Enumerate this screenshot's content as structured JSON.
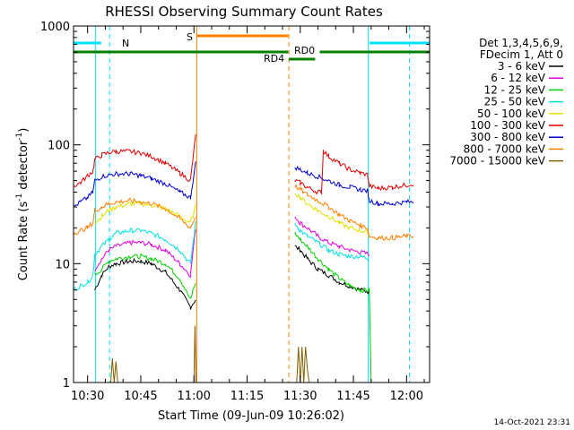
{
  "chart_data": {
    "type": "line",
    "title": "RHESSI Observing Summary Count Rates",
    "xlabel": "Start Time (09-Jun-09 10:26:02)",
    "ylabel_main": "Count Rate (s",
    "ylabel_sup1": "-1",
    "ylabel_mid": " detector",
    "ylabel_sup2": "-1",
    "ylabel_end": ")",
    "yscale": "log",
    "ylim": [
      1,
      1000
    ],
    "xlim_minutes": [
      26.03,
      126.5
    ],
    "xticks": [
      {
        "label": "10:30",
        "min": 30
      },
      {
        "label": "10:45",
        "min": 45
      },
      {
        "label": "11:00",
        "min": 60
      },
      {
        "label": "11:15",
        "min": 75
      },
      {
        "label": "11:30",
        "min": 90
      },
      {
        "label": "11:45",
        "min": 105
      },
      {
        "label": "12:00",
        "min": 120
      }
    ],
    "yticks": [
      {
        "label": "1",
        "v": 1
      },
      {
        "label": "10",
        "v": 10
      },
      {
        "label": "100",
        "v": 100
      },
      {
        "label": "1000",
        "v": 1000
      }
    ],
    "legend_header": [
      "Det 1,3,4,5,6,9,",
      "FDecim 1, Att 0"
    ],
    "series": [
      {
        "name": "3 - 6 keV",
        "color": "#000000",
        "points": [
          [
            26,
            null
          ],
          [
            31.5,
            null
          ],
          [
            32,
            6
          ],
          [
            34,
            8
          ],
          [
            36,
            9.5
          ],
          [
            38,
            10
          ],
          [
            42,
            10.5
          ],
          [
            45,
            10.5
          ],
          [
            48,
            10
          ],
          [
            52,
            8.5
          ],
          [
            56,
            6
          ],
          [
            59,
            4.3
          ],
          [
            60.5,
            5
          ],
          [
            61,
            null
          ],
          [
            88,
            null
          ],
          [
            88.5,
            14
          ],
          [
            90,
            13
          ],
          [
            92,
            11
          ],
          [
            95,
            9
          ],
          [
            98,
            8
          ],
          [
            101,
            7
          ],
          [
            104,
            6.5
          ],
          [
            107,
            6
          ],
          [
            109.5,
            5.8
          ],
          [
            110,
            null
          ]
        ]
      },
      {
        "name": "6 - 12 keV",
        "color": "#e000e0",
        "points": [
          [
            26,
            null
          ],
          [
            31.5,
            null
          ],
          [
            32,
            9
          ],
          [
            34,
            11
          ],
          [
            36,
            13
          ],
          [
            38,
            14
          ],
          [
            42,
            15
          ],
          [
            45,
            15
          ],
          [
            48,
            14.5
          ],
          [
            52,
            13
          ],
          [
            56,
            10
          ],
          [
            59,
            8
          ],
          [
            60.5,
            20
          ],
          [
            61,
            null
          ],
          [
            88,
            null
          ],
          [
            88.5,
            25
          ],
          [
            90,
            22
          ],
          [
            92,
            20
          ],
          [
            95,
            17
          ],
          [
            98,
            15
          ],
          [
            101,
            14
          ],
          [
            104,
            13
          ],
          [
            107,
            12.5
          ],
          [
            109.5,
            12
          ],
          [
            110,
            null
          ]
        ]
      },
      {
        "name": "12 - 25 keV",
        "color": "#00d000",
        "points": [
          [
            26,
            null
          ],
          [
            31.5,
            null
          ],
          [
            32,
            8
          ],
          [
            34,
            9
          ],
          [
            36,
            10.5
          ],
          [
            38,
            11
          ],
          [
            42,
            11.5
          ],
          [
            45,
            11.5
          ],
          [
            48,
            11
          ],
          [
            52,
            10
          ],
          [
            56,
            7.5
          ],
          [
            59,
            5
          ],
          [
            60.5,
            7
          ],
          [
            61,
            null
          ],
          [
            88,
            null
          ],
          [
            88.5,
            18
          ],
          [
            90,
            16
          ],
          [
            92,
            14
          ],
          [
            95,
            11
          ],
          [
            98,
            9
          ],
          [
            101,
            7.5
          ],
          [
            104,
            6.5
          ],
          [
            107,
            6
          ],
          [
            109.5,
            6
          ],
          [
            110,
            1
          ]
        ]
      },
      {
        "name": "25 - 50 keV",
        "color": "#00e0e0",
        "points": [
          [
            26,
            6
          ],
          [
            28,
            6.5
          ],
          [
            30,
            7
          ],
          [
            31.5,
            8
          ],
          [
            32,
            12
          ],
          [
            34,
            14
          ],
          [
            36,
            16
          ],
          [
            38,
            18
          ],
          [
            42,
            19
          ],
          [
            45,
            19
          ],
          [
            48,
            18
          ],
          [
            52,
            16
          ],
          [
            56,
            13
          ],
          [
            59,
            10
          ],
          [
            60.5,
            22
          ],
          [
            61,
            null
          ],
          [
            88,
            null
          ],
          [
            88.5,
            22
          ],
          [
            90,
            19
          ],
          [
            92,
            17
          ],
          [
            95,
            15
          ],
          [
            98,
            13
          ],
          [
            101,
            12
          ],
          [
            104,
            11.5
          ],
          [
            107,
            11.5
          ],
          [
            109.5,
            11
          ],
          [
            110,
            null
          ]
        ]
      },
      {
        "name": "50 - 100 keV",
        "color": "#e0e000",
        "points": [
          [
            26,
            null
          ],
          [
            31.5,
            null
          ],
          [
            32,
            22
          ],
          [
            34,
            25
          ],
          [
            36,
            28
          ],
          [
            38,
            30
          ],
          [
            42,
            32
          ],
          [
            45,
            32
          ],
          [
            48,
            31
          ],
          [
            52,
            29
          ],
          [
            56,
            25
          ],
          [
            59,
            22
          ],
          [
            60.5,
            30
          ],
          [
            61,
            null
          ],
          [
            88,
            null
          ],
          [
            88.5,
            40
          ],
          [
            90,
            36
          ],
          [
            92,
            32
          ],
          [
            95,
            28
          ],
          [
            98,
            25
          ],
          [
            101,
            22
          ],
          [
            104,
            20
          ],
          [
            107,
            19
          ],
          [
            109.5,
            18
          ],
          [
            110,
            null
          ]
        ]
      },
      {
        "name": "100 - 300 keV",
        "color": "#e00000",
        "points": [
          [
            26,
            45
          ],
          [
            28,
            48
          ],
          [
            30,
            55
          ],
          [
            31.5,
            60
          ],
          [
            32,
            75
          ],
          [
            34,
            82
          ],
          [
            36,
            86
          ],
          [
            38,
            88
          ],
          [
            42,
            88
          ],
          [
            45,
            85
          ],
          [
            48,
            80
          ],
          [
            52,
            70
          ],
          [
            56,
            58
          ],
          [
            59,
            50
          ],
          [
            60.5,
            120
          ],
          [
            61,
            null
          ],
          [
            88,
            null
          ],
          [
            88.5,
            50
          ],
          [
            90,
            48
          ],
          [
            92,
            44
          ],
          [
            95,
            40
          ],
          [
            96,
            40
          ],
          [
            96.5,
            90
          ],
          [
            98,
            80
          ],
          [
            101,
            70
          ],
          [
            104,
            62
          ],
          [
            107,
            58
          ],
          [
            109,
            56
          ],
          [
            109.5,
            45
          ],
          [
            112,
            43
          ],
          [
            116,
            44
          ],
          [
            120,
            46
          ],
          [
            122,
            47
          ]
        ]
      },
      {
        "name": "300 - 800 keV",
        "color": "#0000d0",
        "points": [
          [
            26,
            30
          ],
          [
            28,
            33
          ],
          [
            30,
            36
          ],
          [
            31.5,
            40
          ],
          [
            32,
            50
          ],
          [
            34,
            54
          ],
          [
            36,
            56
          ],
          [
            38,
            57
          ],
          [
            42,
            57
          ],
          [
            45,
            55
          ],
          [
            48,
            52
          ],
          [
            52,
            47
          ],
          [
            56,
            40
          ],
          [
            59,
            36
          ],
          [
            60.5,
            70
          ],
          [
            61,
            null
          ],
          [
            88,
            null
          ],
          [
            88.5,
            65
          ],
          [
            90,
            62
          ],
          [
            92,
            58
          ],
          [
            95,
            54
          ],
          [
            98,
            50
          ],
          [
            101,
            46
          ],
          [
            104,
            44
          ],
          [
            107,
            42
          ],
          [
            109,
            41
          ],
          [
            109.5,
            34
          ],
          [
            112,
            32
          ],
          [
            116,
            32
          ],
          [
            120,
            33
          ],
          [
            122,
            33
          ]
        ]
      },
      {
        "name": "800 - 7000 keV",
        "color": "#ff8000",
        "points": [
          [
            26,
            18
          ],
          [
            28,
            19
          ],
          [
            30,
            20
          ],
          [
            31.5,
            22
          ],
          [
            32,
            28
          ],
          [
            34,
            30
          ],
          [
            36,
            32
          ],
          [
            38,
            33
          ],
          [
            42,
            34
          ],
          [
            45,
            33
          ],
          [
            48,
            32
          ],
          [
            52,
            29
          ],
          [
            56,
            24
          ],
          [
            59,
            20
          ],
          [
            60.5,
            25
          ],
          [
            61,
            null
          ],
          [
            88,
            null
          ],
          [
            88.5,
            45
          ],
          [
            90,
            42
          ],
          [
            92,
            38
          ],
          [
            95,
            34
          ],
          [
            98,
            30
          ],
          [
            101,
            26
          ],
          [
            104,
            23
          ],
          [
            107,
            21
          ],
          [
            109,
            20
          ],
          [
            109.5,
            17
          ],
          [
            112,
            16.5
          ],
          [
            116,
            16.5
          ],
          [
            120,
            17
          ],
          [
            122,
            17
          ]
        ]
      },
      {
        "name": "7000 - 15000 keV",
        "color": "#806000",
        "points": [
          [
            26,
            null
          ],
          [
            36,
            null
          ],
          [
            36.5,
            1
          ],
          [
            37,
            1.6
          ],
          [
            37.5,
            1
          ],
          [
            38,
            1.5
          ],
          [
            38.5,
            1
          ],
          [
            60,
            1
          ],
          [
            60.3,
            3
          ],
          [
            60.6,
            1
          ],
          [
            88,
            null
          ],
          [
            89,
            1
          ],
          [
            89.5,
            2
          ],
          [
            90,
            1
          ],
          [
            90.5,
            2
          ],
          [
            91,
            1
          ],
          [
            91.5,
            2
          ],
          [
            92,
            1.3
          ],
          [
            92.5,
            1
          ]
        ]
      }
    ],
    "annotations": {
      "N": "N",
      "S": "S",
      "RD0": "RD0",
      "RD4": "RD4"
    },
    "colors": {
      "cyan_flag": "#00e0ff",
      "green_flag": "#008000",
      "orange_flag": "#ff8000"
    }
  },
  "footer": {
    "timestamp": "14-Oct-2021 23:31"
  }
}
